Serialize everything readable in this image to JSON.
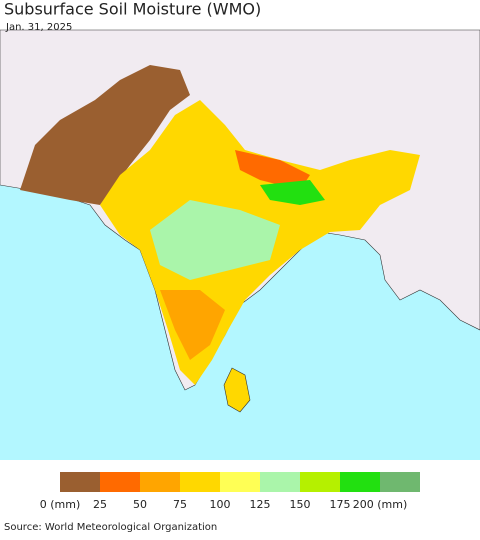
{
  "header": {
    "title": "Subsurface Soil Moisture (WMO)",
    "date": "Jan. 31, 2025"
  },
  "legend": {
    "labels": [
      "0 (mm)",
      "25",
      "50",
      "75",
      "100",
      "125",
      "150",
      "175",
      "200 (mm)"
    ],
    "colors": [
      "#9a5f30",
      "#ff6a00",
      "#ffa500",
      "#ffd800",
      "#ffff55",
      "#aaf5aa",
      "#b5f000",
      "#22e010",
      "#6fb86f"
    ]
  },
  "footer": {
    "source": "Source: World Meteorological Organization"
  }
}
